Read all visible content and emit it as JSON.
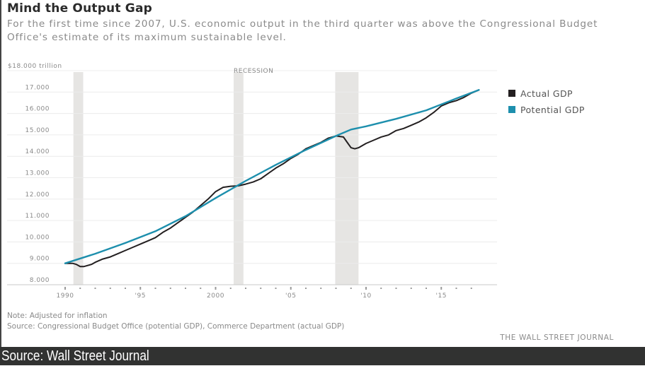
{
  "chart_data": {
    "type": "line",
    "title": "Mind the Output Gap",
    "subtitle": "For the first time since 2007, U.S. economic output in the third quarter was above the Congressional Budget Office's estimate of its maximum sustainable level.",
    "xlabel": "",
    "ylabel": "$18.000 trillion",
    "ylim": [
      8,
      18
    ],
    "xlim": [
      1990,
      2017.75
    ],
    "yticks": [
      8,
      9,
      10,
      11,
      12,
      13,
      14,
      15,
      16,
      17,
      18
    ],
    "ytick_labels": [
      "8.000",
      "9.000",
      "10.000",
      "11.000",
      "12.000",
      "13.000",
      "14.000",
      "15.000",
      "16.000",
      "17.000",
      "$18.000 trillion"
    ],
    "xticks_labeled": [
      1990,
      1995,
      2000,
      2005,
      2010,
      2015
    ],
    "xtick_labels": [
      "1990",
      "'95",
      "2000",
      "'05",
      "'10",
      "'15"
    ],
    "grid": true,
    "legend_position": "top-right",
    "recession_label": "RECESSION",
    "recessions": [
      [
        1990.55,
        1991.2
      ],
      [
        2001.2,
        2001.85
      ],
      [
        2007.95,
        2009.5
      ]
    ],
    "series": [
      {
        "name": "Actual GDP",
        "color": "#231f20",
        "x": [
          1990.0,
          1990.5,
          1990.75,
          1991.0,
          1991.25,
          1991.75,
          1992.0,
          1992.5,
          1993.0,
          1993.5,
          1994.0,
          1994.5,
          1995.0,
          1995.5,
          1996.0,
          1996.5,
          1997.0,
          1997.5,
          1998.0,
          1998.5,
          1999.0,
          1999.5,
          2000.0,
          2000.5,
          2001.0,
          2001.5,
          2002.0,
          2002.5,
          2003.0,
          2003.5,
          2004.0,
          2004.5,
          2005.0,
          2005.5,
          2006.0,
          2006.5,
          2007.0,
          2007.5,
          2008.0,
          2008.5,
          2008.75,
          2009.0,
          2009.25,
          2009.5,
          2010.0,
          2010.5,
          2011.0,
          2011.5,
          2012.0,
          2012.5,
          2013.0,
          2013.5,
          2014.0,
          2014.5,
          2015.0,
          2015.5,
          2016.0,
          2016.5,
          2017.0,
          2017.5
        ],
        "values": [
          9.0,
          9.0,
          8.95,
          8.85,
          8.85,
          8.95,
          9.05,
          9.2,
          9.3,
          9.45,
          9.6,
          9.75,
          9.9,
          10.05,
          10.2,
          10.45,
          10.65,
          10.9,
          11.15,
          11.4,
          11.7,
          12.0,
          12.35,
          12.55,
          12.6,
          12.62,
          12.7,
          12.8,
          12.95,
          13.2,
          13.45,
          13.65,
          13.9,
          14.1,
          14.35,
          14.5,
          14.65,
          14.85,
          14.95,
          14.9,
          14.65,
          14.4,
          14.35,
          14.4,
          14.6,
          14.75,
          14.9,
          15.0,
          15.2,
          15.3,
          15.45,
          15.6,
          15.8,
          16.05,
          16.35,
          16.5,
          16.6,
          16.75,
          16.95,
          17.1
        ],
        "unit": "trillion $ (inflation-adjusted)"
      },
      {
        "name": "Potential GDP",
        "color": "#1d8fad",
        "x": [
          1990.0,
          1992.0,
          1994.0,
          1996.0,
          1998.0,
          2000.0,
          2002.0,
          2004.0,
          2006.0,
          2008.0,
          2009.0,
          2010.0,
          2012.0,
          2014.0,
          2016.0,
          2017.5
        ],
        "values": [
          9.0,
          9.45,
          9.95,
          10.5,
          11.2,
          12.05,
          12.85,
          13.6,
          14.3,
          14.95,
          15.25,
          15.4,
          15.75,
          16.15,
          16.7,
          17.1
        ],
        "unit": "trillion $ (inflation-adjusted)"
      }
    ]
  },
  "notes": {
    "note": "Note: Adjusted for inflation",
    "source": "Source: Congressional Budget Office (potential GDP), Commerce Department (actual GDP)",
    "credit": "THE WALL STREET JOURNAL"
  },
  "footer": {
    "label": "Source: Wall Street Journal"
  }
}
